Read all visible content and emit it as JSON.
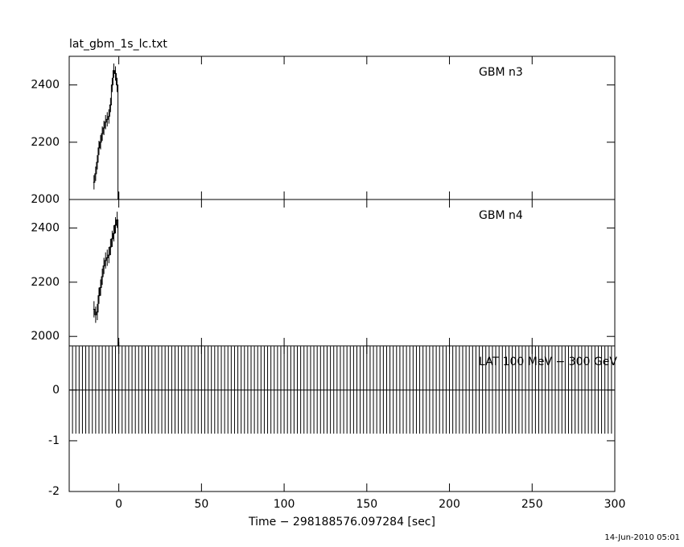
{
  "chart_data": {
    "type": "errorbar",
    "title": "lat_gbm_1s_lc.txt",
    "x_label": "Time − 298188576.097284 [sec]",
    "footer": "14-Jun-2010 05:01",
    "xlim": [
      -30,
      300
    ],
    "xticks": [
      0,
      50,
      100,
      150,
      200,
      250,
      300
    ],
    "panels": [
      {
        "name": "GBM n3",
        "ylim": [
          2000,
          2500
        ],
        "yticks": [
          2000,
          2200,
          2400
        ],
        "error": 25,
        "x": [
          -15,
          -14,
          -13,
          -12,
          -11,
          -10,
          -9,
          -8,
          -7,
          -6,
          -5,
          -4,
          -3,
          -2,
          -1,
          0
        ],
        "values": [
          2060,
          2090,
          2130,
          2180,
          2200,
          2230,
          2250,
          2270,
          2280,
          2290,
          2330,
          2400,
          2450,
          2440,
          2400,
          2000
        ]
      },
      {
        "name": "GBM n4",
        "ylim": [
          1965,
          2505
        ],
        "yticks": [
          2000,
          2200,
          2400
        ],
        "error": 30,
        "x": [
          -15,
          -14,
          -13,
          -12,
          -11,
          -10,
          -9,
          -8,
          -7,
          -6,
          -5,
          -4,
          -3,
          -2,
          -1,
          0
        ],
        "values": [
          2100,
          2080,
          2090,
          2150,
          2180,
          2220,
          2260,
          2280,
          2290,
          2300,
          2330,
          2360,
          2380,
          2410,
          2430,
          1950
        ]
      },
      {
        "name": "LAT 100 MeV − 300 GeV",
        "ylim": [
          -2,
          0.87
        ],
        "yticks": [
          -2,
          -1,
          0
        ],
        "error": 0.86,
        "x": [
          -30,
          -28,
          -26,
          -24,
          -22,
          -20,
          -18,
          -16,
          -14,
          -12,
          -10,
          -8,
          -6,
          -4,
          -2,
          0,
          2,
          4,
          6,
          8,
          10,
          12,
          14,
          16,
          18,
          20,
          22,
          24,
          26,
          28,
          30,
          32,
          34,
          36,
          38,
          40,
          42,
          44,
          46,
          48,
          50,
          52,
          54,
          56,
          58,
          60,
          62,
          64,
          66,
          68,
          70,
          72,
          74,
          76,
          78,
          80,
          82,
          84,
          86,
          88,
          90,
          92,
          94,
          96,
          98,
          100,
          102,
          104,
          106,
          108,
          110,
          112,
          114,
          116,
          118,
          120,
          122,
          124,
          126,
          128,
          130,
          132,
          134,
          136,
          138,
          140,
          142,
          144,
          146,
          148,
          150,
          152,
          154,
          156,
          158,
          160,
          162,
          164,
          166,
          168,
          170,
          172,
          174,
          176,
          178,
          180,
          182,
          184,
          186,
          188,
          190,
          192,
          194,
          196,
          198,
          200,
          202,
          204,
          206,
          208,
          210,
          212,
          214,
          216,
          218,
          220,
          222,
          224,
          226,
          228,
          230,
          232,
          234,
          236,
          238,
          240,
          242,
          244,
          246,
          248,
          250,
          252,
          254,
          256,
          258,
          260,
          262,
          264,
          266,
          268,
          270,
          272,
          274,
          276,
          278,
          280,
          282,
          284,
          286,
          288,
          290,
          292,
          294,
          296,
          298,
          300
        ],
        "values": [
          0,
          0,
          0,
          0,
          0,
          0,
          0,
          0,
          0,
          0,
          0,
          0,
          0,
          0,
          0,
          0,
          0,
          0,
          0,
          0,
          0,
          0,
          0,
          0,
          0,
          0,
          0,
          0,
          0,
          0,
          0,
          0,
          0,
          0,
          0,
          0,
          0,
          0,
          0,
          0,
          0,
          0,
          0,
          0,
          0,
          0,
          0,
          0,
          0,
          0,
          0,
          0,
          0,
          0,
          0,
          0,
          0,
          0,
          0,
          0,
          0,
          0,
          0,
          0,
          0,
          0,
          0,
          0,
          0,
          0,
          0,
          0,
          0,
          0,
          0,
          0,
          0,
          0,
          0,
          0,
          0,
          0,
          0,
          0,
          0,
          0,
          0,
          0,
          0,
          0,
          0,
          0,
          0,
          0,
          0,
          0,
          0,
          0,
          0,
          0,
          0,
          0,
          0,
          0,
          0,
          0,
          0,
          0,
          0,
          0,
          0,
          0,
          0,
          0,
          0,
          0,
          0,
          0,
          0,
          0,
          0,
          0,
          0,
          0,
          0,
          0,
          0,
          0,
          0,
          0,
          0,
          0,
          0,
          0,
          0,
          0,
          0,
          0,
          0,
          0,
          0,
          0,
          0,
          0,
          0,
          0,
          0,
          0,
          0,
          0,
          0,
          0,
          0,
          0,
          0,
          0,
          0,
          0,
          0,
          0,
          0,
          0,
          0,
          0,
          0,
          0
        ]
      }
    ]
  }
}
